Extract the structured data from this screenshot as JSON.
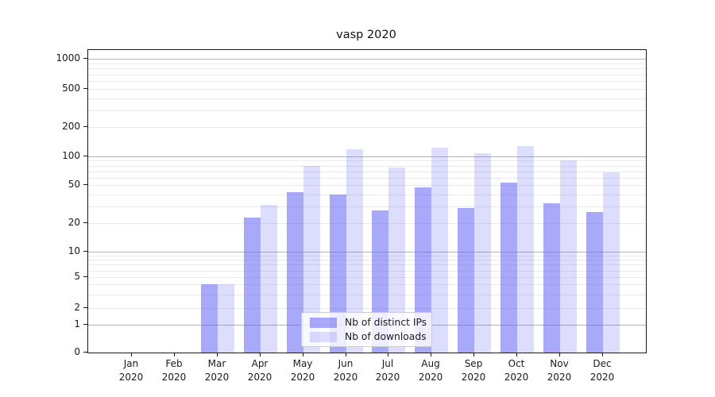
{
  "chart_data": {
    "type": "bar",
    "title": "vasp 2020",
    "categories": [
      "Jan 2020",
      "Feb 2020",
      "Mar 2020",
      "Apr 2020",
      "May 2020",
      "Jun 2020",
      "Jul 2020",
      "Aug 2020",
      "Sep 2020",
      "Oct 2020",
      "Nov 2020",
      "Dec 2020"
    ],
    "series": [
      {
        "name": "Nb of distinct IPs",
        "color": "rgba(99,99,245,0.55)",
        "values": [
          0,
          0,
          4,
          23,
          42,
          40,
          27,
          47,
          29,
          53,
          32,
          26
        ]
      },
      {
        "name": "Nb of downloads",
        "color": "rgba(99,99,245,0.22)",
        "values": [
          0,
          0,
          4,
          31,
          80,
          118,
          77,
          123,
          107,
          127,
          90,
          68
        ]
      }
    ],
    "y_ticks": [
      0,
      1,
      2,
      5,
      10,
      20,
      50,
      100,
      200,
      500,
      1000
    ],
    "y_scale": "symlog",
    "ylim": [
      0,
      1200
    ],
    "xlabel": "",
    "ylabel": "",
    "grid": true,
    "legend_position": "lower center-left"
  },
  "colors": {
    "bar_dark": "rgba(99,99,245,0.55)",
    "bar_light": "rgba(99,99,245,0.22)",
    "grid_major": "#b3b3b3",
    "grid_minor": "#e9e9e9",
    "axis": "#1a1a1a"
  }
}
